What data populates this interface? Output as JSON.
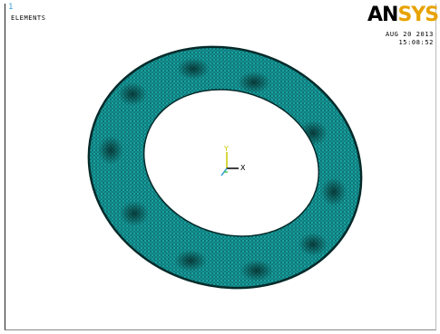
{
  "window": {
    "number": "1",
    "plot_label": "ELEMENTS"
  },
  "logo": {
    "part_a": "AN",
    "part_b": "SYS",
    "color_a": "#000000",
    "color_b": "#e8a200"
  },
  "timestamp": {
    "date": "AUG 20 2013",
    "time": "15:08:52"
  },
  "triad": {
    "x_label": "X",
    "y_label": "Y"
  },
  "mesh": {
    "element_color": "#18a3a3",
    "edge_color": "#052a2a",
    "background": "#ffffff"
  }
}
